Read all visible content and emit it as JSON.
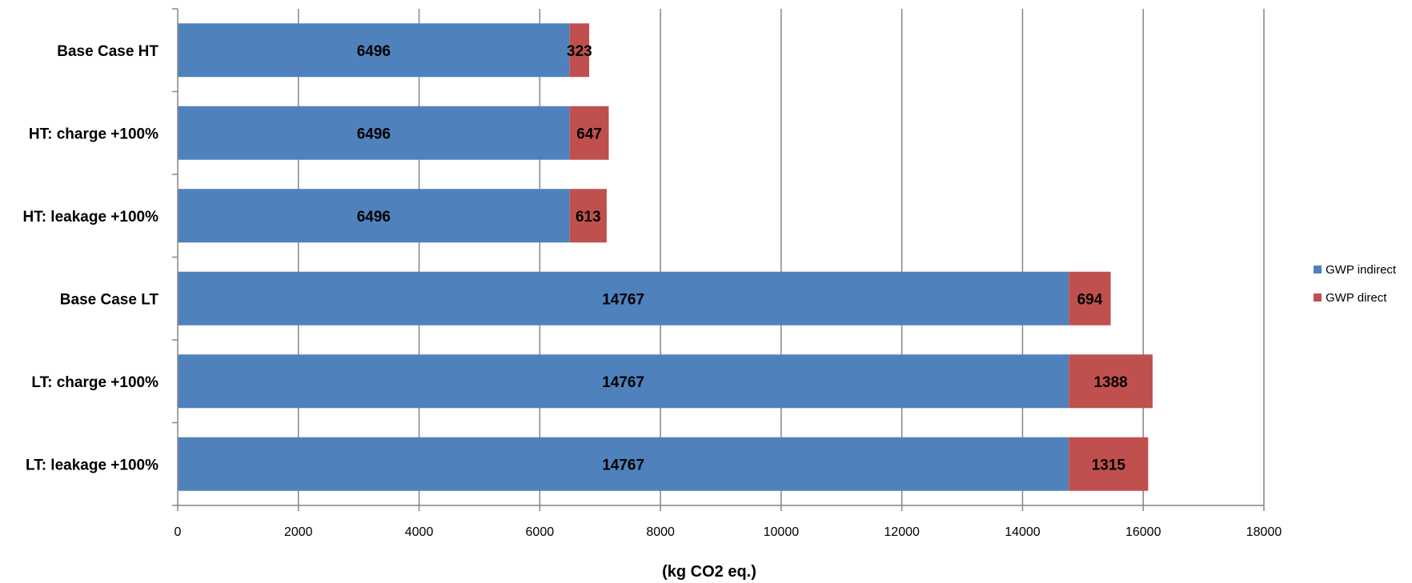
{
  "chart_data": {
    "type": "bar",
    "orientation": "horizontal",
    "stacked": true,
    "categories": [
      "Base Case HT",
      "HT: charge +100%",
      "HT: leakage +100%",
      "Base Case LT",
      "LT: charge +100%",
      "LT: leakage +100%"
    ],
    "series": [
      {
        "name": "GWP indirect",
        "color": "#4f81bd",
        "values": [
          6496,
          6496,
          6496,
          14767,
          14767,
          14767
        ]
      },
      {
        "name": "GWP direct",
        "color": "#c0504d",
        "values": [
          323,
          647,
          613,
          694,
          1388,
          1315
        ]
      }
    ],
    "xlabel": "(kg CO2 eq.)",
    "ylabel": "",
    "title": "",
    "xlim": [
      0,
      18000
    ],
    "xticks": [
      "0",
      "2000",
      "4000",
      "6000",
      "8000",
      "10000",
      "12000",
      "14000",
      "16000",
      "18000"
    ],
    "grid": "vertical major gridlines",
    "legend_position": "right",
    "data_labels": true
  }
}
